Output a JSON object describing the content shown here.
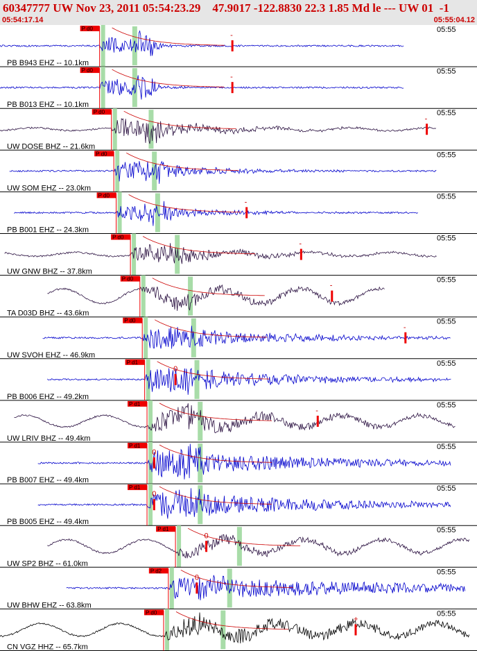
{
  "header": {
    "title": "60347777 UW Nov 23, 2011 05:54:23.29    47.9017 -122.8830 22.3 1.85 Md le --- UW 01  -1",
    "start_time": "05:54:17.14",
    "end_time": "05:55:04.12"
  },
  "colors": {
    "header_bg": "#e6e6e6",
    "header_text": "#cc0000",
    "trace_blue": "#0000cc",
    "trace_dark": "#2a1040",
    "trace_black": "#000000",
    "pick_flag": "#ee0000",
    "window_green": "#a8dca8",
    "coda_red": "#cc0000"
  },
  "chart_data": {
    "type": "seismogram",
    "time_start": "05:54:17.14",
    "time_end": "05:55:04.12",
    "minute_tick_label": "05:55",
    "traces": [
      {
        "label": "PB B943 EHZ -- 10.1km",
        "pick": "P d0",
        "marker": "-",
        "color": "blue",
        "start": 0.0,
        "end": 0.85,
        "pick_t": 0.21,
        "mark_t": 0.49,
        "amp": 0.9,
        "bg_wave": 0,
        "ampDecay": 18
      },
      {
        "label": "PB B013 EHZ -- 10.1km",
        "pick": "P d0",
        "marker": "-",
        "color": "blue",
        "start": 0.0,
        "end": 0.85,
        "pick_t": 0.21,
        "mark_t": 0.49,
        "amp": 0.85,
        "bg_wave": 0,
        "ampDecay": 18
      },
      {
        "label": "UW DOSE BHZ -- 21.6km",
        "pick": "P d0",
        "marker": "-",
        "color": "dark",
        "start": 0.0,
        "end": 0.92,
        "pick_t": 0.235,
        "mark_t": 0.9,
        "amp": 0.7,
        "bg_wave": 0.15,
        "ampDecay": 6
      },
      {
        "label": "UW SOM EHZ -- 23.0km",
        "pick": "P d0",
        "marker": "",
        "color": "blue",
        "start": 0.02,
        "end": 0.92,
        "pick_t": 0.24,
        "mark_t": -1,
        "amp": 0.8,
        "bg_wave": 0,
        "ampDecay": 7
      },
      {
        "label": "PB B001 EHZ -- 24.3km",
        "pick": "P d0",
        "marker": "-",
        "color": "blue",
        "start": 0.03,
        "end": 0.88,
        "pick_t": 0.245,
        "mark_t": 0.52,
        "amp": 0.6,
        "bg_wave": 0,
        "ampDecay": 7
      },
      {
        "label": "UW GNW BHZ -- 37.8km",
        "pick": "P d0",
        "marker": "-",
        "color": "dark",
        "start": 0.01,
        "end": 0.92,
        "pick_t": 0.275,
        "mark_t": 0.635,
        "amp": 0.55,
        "bg_wave": 0.2,
        "ampDecay": 5
      },
      {
        "label": "TA D03D BHZ -- 43.6km",
        "pick": "P d0",
        "marker": "-",
        "color": "dark",
        "start": 0.1,
        "end": 0.81,
        "pick_t": 0.295,
        "mark_t": 0.7,
        "amp": 0.4,
        "bg_wave": 0.75,
        "ampDecay": 3
      },
      {
        "label": "UW SVOH EHZ -- 46.9km",
        "pick": "P d0",
        "marker": "-",
        "color": "blue",
        "start": 0.09,
        "end": 0.95,
        "pick_t": 0.3,
        "mark_t": 0.855,
        "amp": 0.75,
        "bg_wave": 0,
        "ampDecay": 4
      },
      {
        "label": "PB B006 EHZ -- 49.2km",
        "pick": "P d1",
        "marker": "0",
        "color": "blue",
        "start": 0.1,
        "end": 0.95,
        "pick_t": 0.305,
        "mark_t": 0.37,
        "amp": 0.85,
        "bg_wave": 0,
        "ampDecay": 4
      },
      {
        "label": "UW LRIV BHZ -- 49.4km",
        "pick": "P d1",
        "marker": "-",
        "color": "dark",
        "start": 0.03,
        "end": 0.96,
        "pick_t": 0.31,
        "mark_t": 0.67,
        "amp": 0.55,
        "bg_wave": 0.6,
        "ampDecay": 3
      },
      {
        "label": "PB B007 EHZ -- 49.4km",
        "pick": "P d1",
        "marker": "0",
        "color": "blue",
        "start": 0.08,
        "end": 0.95,
        "pick_t": 0.31,
        "mark_t": 0.325,
        "amp": 0.85,
        "bg_wave": 0,
        "ampDecay": 3
      },
      {
        "label": "PB B005 EHZ -- 49.4km",
        "pick": "P d1",
        "marker": "0",
        "color": "blue",
        "start": 0.08,
        "end": 0.95,
        "pick_t": 0.31,
        "mark_t": 0.325,
        "amp": 0.85,
        "bg_wave": 0,
        "ampDecay": 3
      },
      {
        "label": "UW SP2 BHZ -- 61.0km",
        "pick": "P d1",
        "marker": "0",
        "color": "dark",
        "start": 0.1,
        "end": 0.99,
        "pick_t": 0.37,
        "mark_t": 0.435,
        "amp": 0.35,
        "bg_wave": 0.7,
        "ampDecay": 3
      },
      {
        "label": "UW BHW EHZ -- 63.8km",
        "pick": "P d2",
        "marker": "0",
        "color": "blue",
        "start": 0.14,
        "end": 0.98,
        "pick_t": 0.355,
        "mark_t": 0.415,
        "amp": 0.7,
        "bg_wave": 0,
        "ampDecay": 2
      },
      {
        "label": "CN VGZ HHZ -- 65.7km",
        "pick": "P d0",
        "marker": "+",
        "color": "black",
        "start": 0.0,
        "end": 0.99,
        "pick_t": 0.345,
        "mark_t": 0.75,
        "amp": 0.55,
        "bg_wave": 0.65,
        "ampDecay": 2
      }
    ]
  }
}
